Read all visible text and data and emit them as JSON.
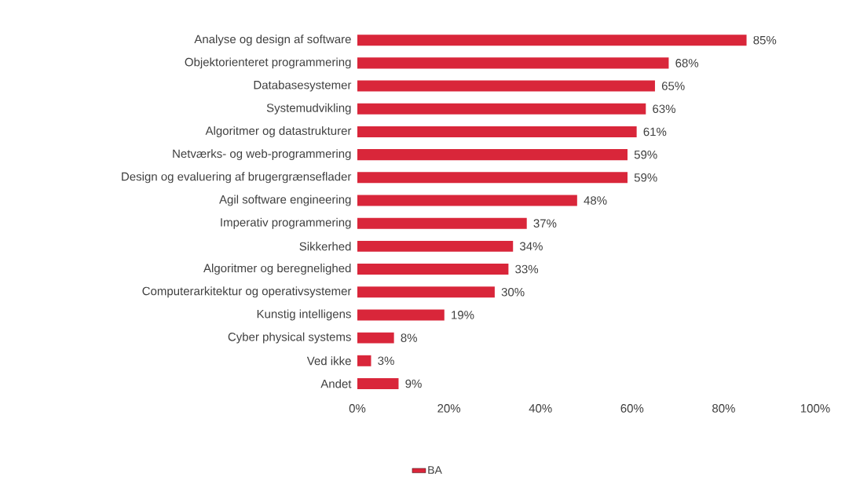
{
  "chart_data": {
    "type": "bar",
    "orientation": "horizontal",
    "categories": [
      "Analyse og design af software",
      "Objektorienteret programmering",
      "Databasesystemer",
      "Systemudvikling",
      "Algoritmer og datastrukturer",
      "Netværks- og web-programmering",
      "Design og evaluering af brugergrænseflader",
      "Agil software engineering",
      "Imperativ programmering",
      "Sikkerhed",
      "Algoritmer og beregnelighed",
      "Computerarkitektur og operativsystemer",
      "Kunstig intelligens",
      "Cyber physical systems",
      "Ved ikke",
      "Andet"
    ],
    "series": [
      {
        "name": "BA",
        "color": "#d9263a",
        "values": [
          85,
          68,
          65,
          63,
          61,
          59,
          59,
          48,
          37,
          34,
          33,
          30,
          19,
          8,
          3,
          9
        ],
        "value_labels": [
          "85%",
          "68%",
          "65%",
          "63%",
          "61%",
          "59%",
          "59%",
          "48%",
          "37%",
          "34%",
          "33%",
          "30%",
          "19%",
          "8%",
          "3%",
          "9%"
        ]
      }
    ],
    "xlim": [
      0,
      100
    ],
    "xticks": [
      {
        "value": 0,
        "label": "0%"
      },
      {
        "value": 20,
        "label": "20%"
      },
      {
        "value": 40,
        "label": "40%"
      },
      {
        "value": 60,
        "label": "60%"
      },
      {
        "value": 80,
        "label": "80%"
      },
      {
        "value": 100,
        "label": "100%"
      }
    ],
    "grid": false,
    "legend": "bottom"
  }
}
